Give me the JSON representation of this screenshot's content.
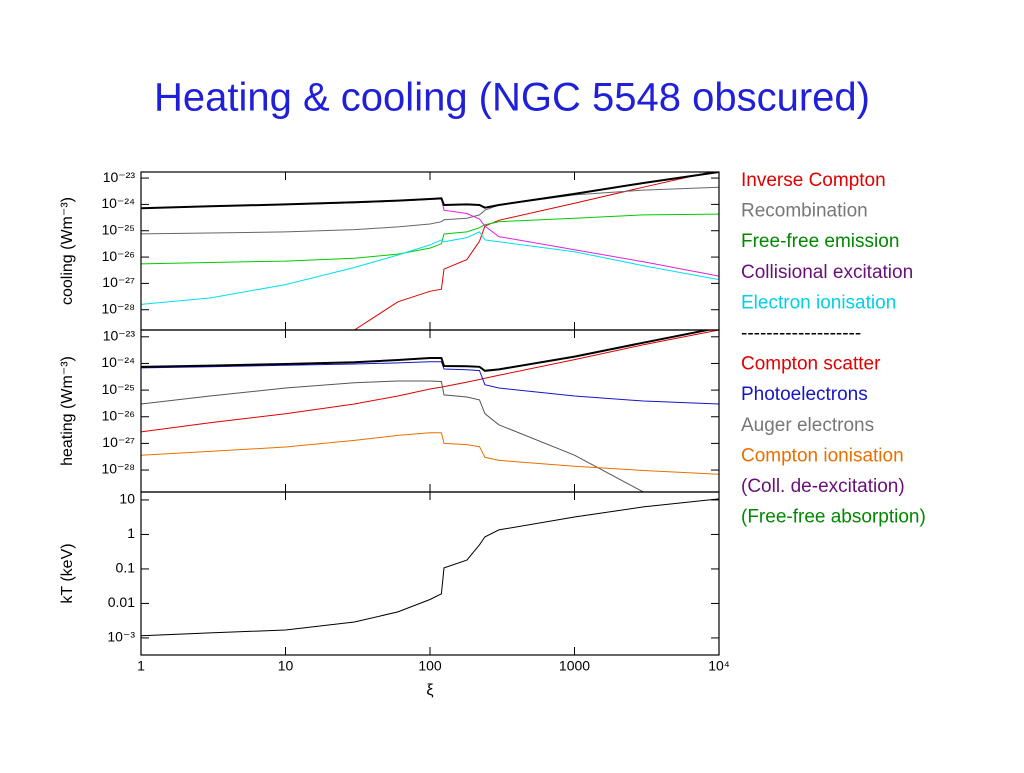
{
  "title": "Heating & cooling (NGC 5548 obscured)",
  "legend": [
    {
      "text": "Inverse Compton",
      "color": "#e00000"
    },
    {
      "text": "Recombination",
      "color": "#777777"
    },
    {
      "text": "Free-free emission",
      "color": "#008800"
    },
    {
      "text": "Collisional excitation",
      "color": "#6a0f7a"
    },
    {
      "text": "Electron ionisation",
      "color": "#00d0e8"
    },
    {
      "text": "-------------------",
      "color": "#000000"
    },
    {
      "text": "Compton scatter",
      "color": "#e00000"
    },
    {
      "text": "Photoelectrons",
      "color": "#1515c8"
    },
    {
      "text": "Auger electrons",
      "color": "#777777"
    },
    {
      "text": "Compton ionisation",
      "color": "#e87000"
    },
    {
      "text": "(Coll. de-excitation)",
      "color": "#6a0f7a"
    },
    {
      "text": "(Free-free absorption)",
      "color": "#008800"
    }
  ],
  "chart_data": [
    {
      "type": "line",
      "y_label": "cooling (Wm⁻³)",
      "xscale": "log",
      "yscale": "log",
      "xlim": [
        1,
        10000
      ],
      "ylim": [
        1.7e-29,
        1.7e-23
      ],
      "yticks": [
        {
          "value": 1e-23,
          "label": "10⁻²³"
        },
        {
          "value": 1e-24,
          "label": "10⁻²⁴"
        },
        {
          "value": 1e-25,
          "label": "10⁻²⁵"
        },
        {
          "value": 1e-26,
          "label": "10⁻²⁶"
        },
        {
          "value": 1e-27,
          "label": "10⁻²⁷"
        },
        {
          "value": 1e-28,
          "label": "10⁻²⁸"
        }
      ],
      "x": [
        1,
        3,
        10,
        30,
        60,
        100,
        120,
        125,
        180,
        220,
        240,
        300,
        1000,
        3000,
        10000
      ],
      "series": [
        {
          "color": "#e00000",
          "values": [
            null,
            null,
            null,
            1.7e-29,
            2e-28,
            5e-28,
            6e-28,
            3.5e-27,
            8e-27,
            4e-26,
            1.5e-25,
            2.5e-25,
            1.1e-24,
            4.5e-24,
            2e-23
          ]
        },
        {
          "color": "#666666",
          "values": [
            7.6e-26,
            8.2e-26,
            9e-26,
            1.1e-25,
            1.4e-25,
            1.8e-25,
            2.2e-25,
            2.6e-25,
            3e-25,
            4e-25,
            6e-25,
            9.5e-25,
            2.3e-24,
            3.5e-24,
            4.5e-24
          ]
        },
        {
          "color": "#00cc00",
          "values": [
            5.5e-27,
            6.2e-27,
            7e-27,
            9e-27,
            1.3e-26,
            2.2e-26,
            3.2e-26,
            7.5e-26,
            9e-26,
            1.3e-25,
            1.7e-25,
            2.2e-25,
            3e-25,
            4e-25,
            4.3e-25
          ]
        },
        {
          "color": "#e020e0",
          "values": [
            7e-25,
            8.3e-25,
            9.8e-25,
            1.15e-24,
            1.35e-24,
            1.55e-24,
            1.6e-24,
            6e-25,
            4.5e-25,
            2.8e-25,
            1.5e-25,
            6e-26,
            1.9e-26,
            6.6e-27,
            1.9e-27
          ]
        },
        {
          "color": "#00e0f0",
          "values": [
            1.6e-28,
            2.8e-28,
            9e-28,
            4e-27,
            1.2e-26,
            2.9e-26,
            4.5e-26,
            3.8e-26,
            5.5e-26,
            9e-26,
            4.5e-26,
            3.8e-26,
            1.6e-26,
            4.7e-27,
            1.4e-27
          ]
        },
        {
          "color": "#000000",
          "width": 2,
          "values": [
            7.2e-25,
            8.5e-25,
            1e-24,
            1.2e-24,
            1.4e-24,
            1.6e-24,
            1.7e-24,
            9.5e-25,
            1e-24,
            9.5e-25,
            7.5e-25,
            9.5e-25,
            2.5e-24,
            6.5e-24,
            1.7e-23
          ]
        }
      ]
    },
    {
      "type": "line",
      "y_label": "heating (Wm⁻³)",
      "xscale": "log",
      "yscale": "log",
      "xlim": [
        1,
        10000
      ],
      "ylim": [
        1.5e-29,
        1.8e-23
      ],
      "yticks": [
        {
          "value": 1e-23,
          "label": "10⁻²³"
        },
        {
          "value": 1e-24,
          "label": "10⁻²⁴"
        },
        {
          "value": 1e-25,
          "label": "10⁻²⁵"
        },
        {
          "value": 1e-26,
          "label": "10⁻²⁶"
        },
        {
          "value": 1e-27,
          "label": "10⁻²⁷"
        },
        {
          "value": 1e-28,
          "label": "10⁻²⁸"
        }
      ],
      "x": [
        1,
        3,
        10,
        30,
        60,
        100,
        120,
        125,
        180,
        220,
        240,
        300,
        1000,
        3000,
        10000
      ],
      "series": [
        {
          "color": "#e00000",
          "values": [
            2.7e-27,
            6e-27,
            1.3e-26,
            3e-26,
            6e-26,
            1.1e-25,
            1.3e-25,
            1.35e-25,
            2e-25,
            2.5e-25,
            2.8e-25,
            3.6e-25,
            1.4e-24,
            5e-24,
            1.8e-23
          ]
        },
        {
          "color": "#1515c8",
          "values": [
            6.8e-25,
            7.5e-25,
            8.5e-25,
            9.5e-25,
            1.05e-24,
            1.15e-24,
            1.15e-24,
            6.2e-25,
            5.8e-25,
            5.4e-25,
            1.6e-25,
            1.2e-25,
            6e-26,
            3.9e-26,
            3e-26
          ]
        },
        {
          "color": "#555555",
          "values": [
            3e-26,
            6e-26,
            1.2e-25,
            1.9e-25,
            2.2e-25,
            2.2e-25,
            2.1e-25,
            6.6e-26,
            5.5e-26,
            4.3e-26,
            1.3e-26,
            5e-27,
            3.6e-28,
            1.5e-29,
            null
          ]
        },
        {
          "color": "#e87000",
          "values": [
            3.6e-28,
            5e-28,
            7.3e-28,
            1.3e-27,
            2e-27,
            2.5e-27,
            2.5e-27,
            1e-27,
            9e-28,
            7.5e-28,
            3e-28,
            2.3e-28,
            1.4e-28,
            9.6e-29,
            7e-29
          ]
        },
        {
          "color": "#000000",
          "width": 2,
          "values": [
            7.4e-25,
            8.3e-25,
            9.5e-25,
            1.1e-24,
            1.35e-24,
            1.6e-24,
            1.6e-24,
            8e-25,
            7.8e-25,
            7.5e-25,
            5.3e-25,
            6e-25,
            1.8e-24,
            6e-24,
            2.2e-23
          ]
        }
      ]
    },
    {
      "type": "line",
      "y_label": "kT (keV)",
      "x_label": "ξ",
      "xscale": "log",
      "yscale": "log",
      "xlim": [
        1,
        10000
      ],
      "ylim": [
        0.00032,
        17
      ],
      "xticks": [
        1,
        10,
        100,
        1000,
        {
          "value": 10000,
          "label": "10⁴"
        }
      ],
      "yticks": [
        10,
        1,
        0.1,
        0.01,
        {
          "value": 0.001,
          "label": "10⁻³"
        }
      ],
      "x": [
        1,
        3,
        10,
        30,
        60,
        100,
        120,
        125,
        180,
        220,
        240,
        300,
        1000,
        3000,
        10000
      ],
      "series": [
        {
          "color": "#000000",
          "values": [
            0.00115,
            0.0014,
            0.0017,
            0.0029,
            0.0057,
            0.013,
            0.019,
            0.107,
            0.18,
            0.5,
            0.85,
            1.35,
            3.2,
            6.3,
            10.7
          ]
        }
      ]
    }
  ]
}
